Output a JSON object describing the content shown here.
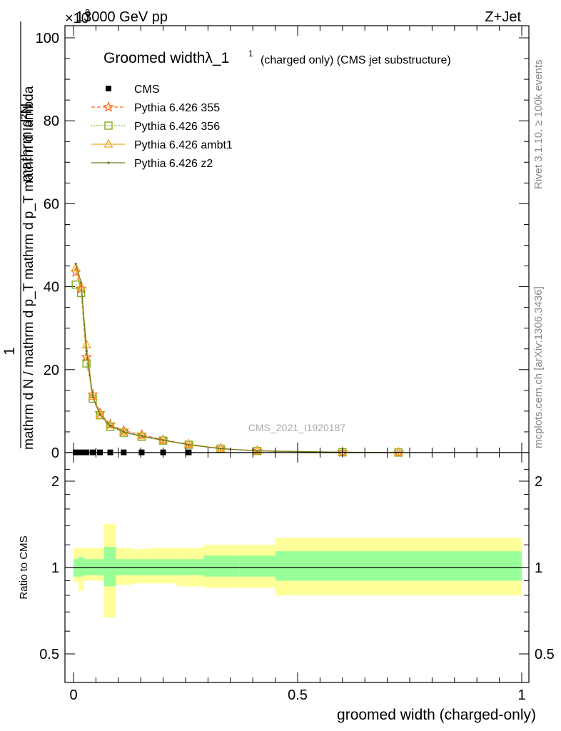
{
  "header": {
    "left": "13000 GeV pp",
    "right": "Z+Jet",
    "exponent": "×10",
    "exponent_power": "3"
  },
  "side": {
    "rivet": "Rivet 3.1.10, ≥ 100k events",
    "mcplots": "mcplots.cern.ch [arXiv:1306.3436]"
  },
  "watermark": "CMS_2021_I1920187",
  "colors": {
    "cms": "#000000",
    "p355": "#ff6b1a",
    "p356": "#7fae1a",
    "ambt1": "#f5a623",
    "z2": "#6b7a1a",
    "band_outer": "#ffff99",
    "band_inner": "#99ff99"
  },
  "chart_data": [
    {
      "type": "line",
      "title": "Groomed widthλ_1",
      "title_sup": "1",
      "subtitle": "(charged only) (CMS jet substructure)",
      "ylabel_numerator": "mathrm d²N",
      "ylabel_denominator": "mathrm d N / mathrm d p_T mathrm d p_T mathrm d lambda",
      "ylabel_prefix": "1",
      "xlim": [
        0,
        1
      ],
      "ylim": [
        0,
        100
      ],
      "ylim_scale_note": "×10^3",
      "yticks": [
        0,
        20,
        40,
        60,
        80,
        100
      ],
      "ytick_labels": [
        "0",
        "20",
        "40",
        "60",
        "80",
        "100"
      ],
      "x": [
        0.005,
        0.017,
        0.029,
        0.043,
        0.059,
        0.082,
        0.112,
        0.152,
        0.2,
        0.257,
        0.328,
        0.41,
        0.6,
        0.725
      ],
      "series": [
        {
          "name": "CMS",
          "style": "square-filled",
          "values": [
            0.05,
            0.05,
            0.05,
            0.05,
            0.05,
            0.05,
            0.05,
            0.05,
            0.05,
            0.05,
            0.0,
            0.0,
            0.0,
            0.0
          ]
        },
        {
          "name": "Pythia 6.426 355",
          "style": "star-dashed",
          "values": [
            43.5,
            39.5,
            23.0,
            14.0,
            9.5,
            6.8,
            5.3,
            4.3,
            3.1,
            2.0,
            1.0,
            0.45,
            0.1,
            0.02
          ]
        },
        {
          "name": "Pythia 6.426 356",
          "style": "square-open-dotted",
          "values": [
            40.5,
            38.5,
            21.5,
            13.0,
            9.0,
            6.2,
            4.8,
            3.8,
            2.9,
            1.9,
            0.95,
            0.4,
            0.08,
            0.02
          ]
        },
        {
          "name": "Pythia 6.426 ambt1",
          "style": "triangle-open-solid",
          "values": [
            44.5,
            40.0,
            26.0,
            13.5,
            9.0,
            6.6,
            5.0,
            4.0,
            3.0,
            2.0,
            1.0,
            0.4,
            0.08,
            0.02
          ]
        },
        {
          "name": "Pythia 6.426 z2",
          "style": "dot-solid",
          "values": [
            45.5,
            41.0,
            24.5,
            13.5,
            9.2,
            6.5,
            5.0,
            4.0,
            3.0,
            1.9,
            0.95,
            0.4,
            0.08,
            0.02
          ]
        }
      ]
    },
    {
      "type": "area",
      "ylabel": "Ratio to CMS",
      "xlabel": "groomed width (charged-only)",
      "xlim": [
        0,
        1
      ],
      "ylim": [
        0.4,
        2.4
      ],
      "yscale": "log",
      "yticks": [
        0.5,
        1,
        2
      ],
      "ytick_labels": [
        "0.5",
        "1",
        "2"
      ],
      "xticks": [
        0,
        0.5,
        1
      ],
      "xtick_labels": [
        "0",
        "0.5",
        "1"
      ],
      "reference_line": 1,
      "bin_edges": [
        0.0,
        0.011,
        0.023,
        0.035,
        0.05,
        0.068,
        0.095,
        0.13,
        0.17,
        0.23,
        0.29,
        0.37,
        0.45,
        1.0
      ],
      "band_outer": {
        "lo": [
          0.89,
          0.83,
          0.9,
          0.9,
          0.9,
          0.67,
          0.87,
          0.88,
          0.88,
          0.86,
          0.85,
          0.85,
          0.8
        ],
        "hi": [
          1.17,
          1.17,
          1.17,
          1.17,
          1.17,
          1.42,
          1.17,
          1.16,
          1.17,
          1.17,
          1.2,
          1.2,
          1.27
        ]
      },
      "band_inner": {
        "lo": [
          0.93,
          0.93,
          0.94,
          0.94,
          0.94,
          0.86,
          0.94,
          0.94,
          0.94,
          0.94,
          0.93,
          0.93,
          0.9
        ],
        "hi": [
          1.07,
          1.09,
          1.07,
          1.07,
          1.07,
          1.18,
          1.07,
          1.07,
          1.07,
          1.07,
          1.1,
          1.1,
          1.14
        ]
      }
    }
  ]
}
